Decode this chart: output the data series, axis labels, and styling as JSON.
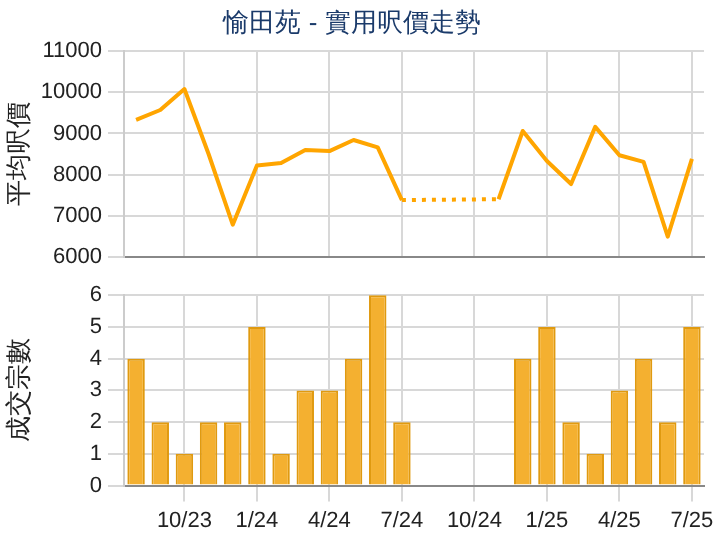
{
  "chart_data": [
    {
      "type": "line",
      "title": "愉田苑 - 實用呎價走勢",
      "ylabel": "平均呎價",
      "categories": [
        null,
        null,
        null,
        null,
        null,
        null,
        null,
        null,
        null,
        null,
        null,
        null,
        null,
        null,
        null,
        null,
        null,
        null,
        null,
        null,
        null,
        null,
        null,
        null
      ],
      "series": [
        {
          "color": "#ffa500",
          "values": [
            9330,
            9570,
            10080,
            8500,
            6780,
            8220,
            8280,
            8600,
            8570,
            8840,
            8660,
            7380,
            null,
            null,
            null,
            7400,
            9060,
            8330,
            7770,
            9160,
            8470,
            8310,
            6490,
            8380
          ]
        }
      ],
      "ylim": [
        6000,
        11000
      ],
      "yticks": [
        6000,
        7000,
        8000,
        9000,
        10000,
        11000
      ],
      "grid": true,
      "tick_labels": "y"
    },
    {
      "type": "bar",
      "ylabel": "成交宗數",
      "categories": [
        null,
        null,
        "10/23",
        null,
        null,
        "1/24",
        null,
        null,
        "4/24",
        null,
        null,
        "7/24",
        null,
        null,
        "10/24",
        null,
        null,
        "1/25",
        null,
        null,
        "4/25",
        null,
        null,
        "7/25"
      ],
      "series": [
        {
          "color": "#f4b030",
          "values": [
            4,
            2,
            1,
            2,
            2,
            5,
            1,
            3,
            3,
            4,
            6,
            2,
            null,
            null,
            null,
            null,
            4,
            5,
            2,
            1,
            3,
            4,
            2,
            5
          ]
        }
      ],
      "ylim": [
        0,
        6
      ],
      "yticks": [
        0,
        1,
        2,
        3,
        4,
        5,
        6
      ],
      "grid": true
    }
  ]
}
